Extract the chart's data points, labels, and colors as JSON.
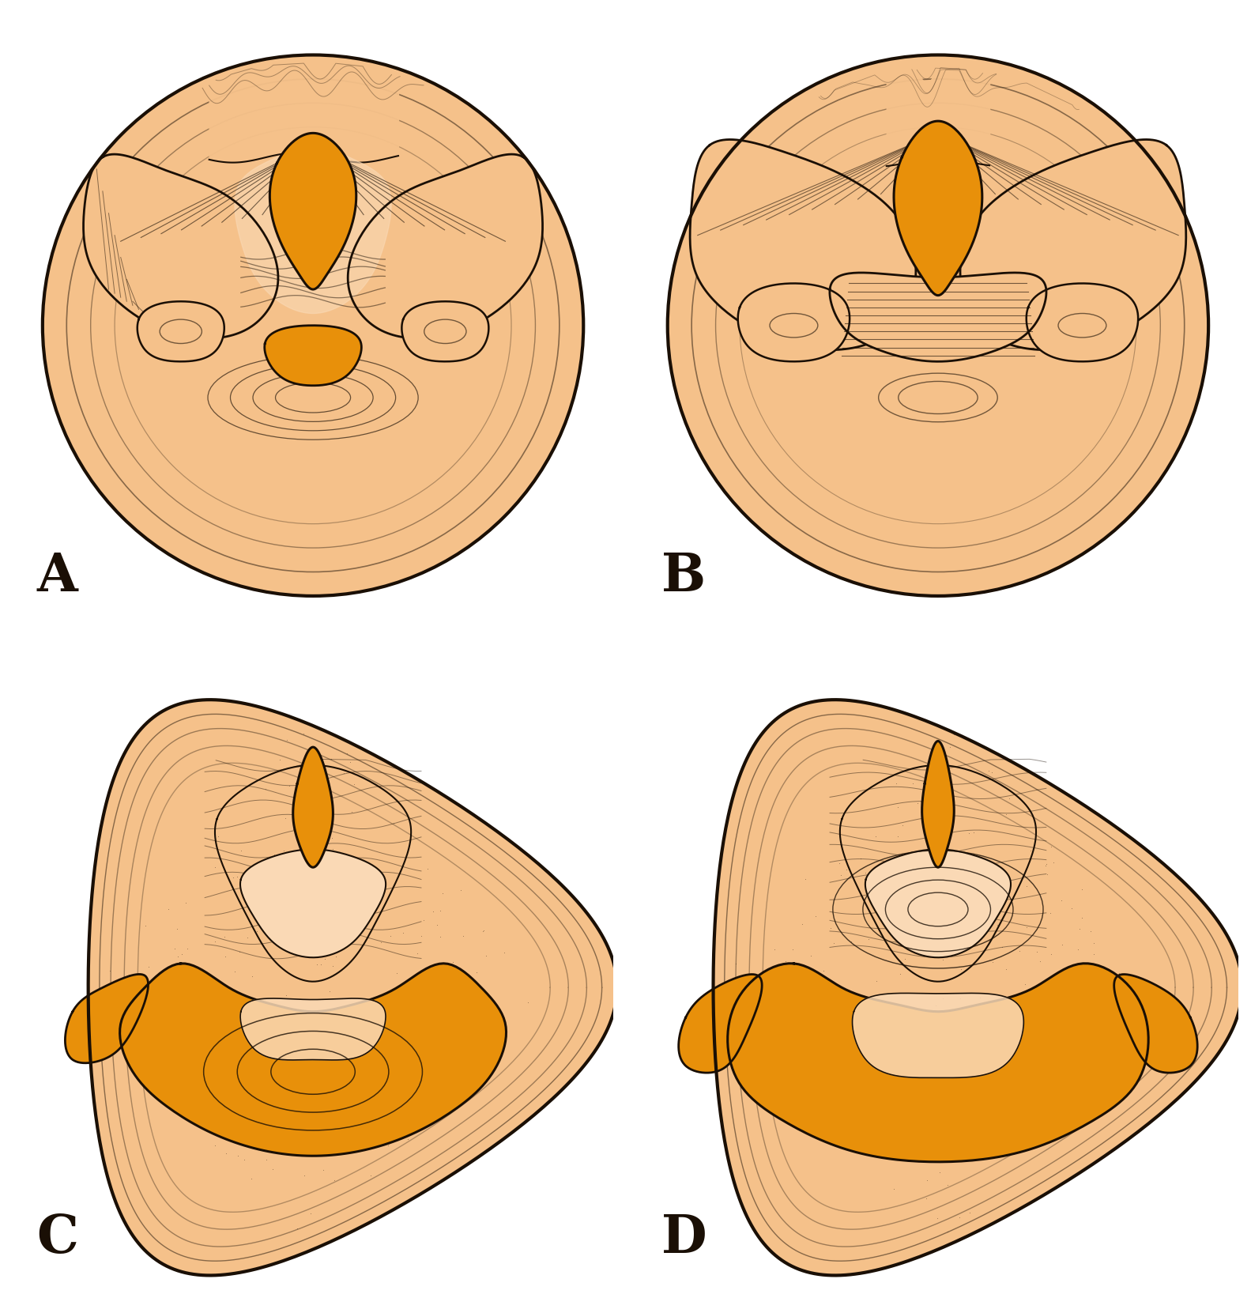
{
  "background_color": "#ffffff",
  "skin_color": "#f5c18a",
  "skin_light": "#fad9b5",
  "orange_color": "#e8900a",
  "orange_dark": "#c97800",
  "dark_line_color": "#1a0f05",
  "label_fontsize": 48,
  "labels": [
    "A",
    "B",
    "C",
    "D"
  ],
  "figsize": [
    15.83,
    16.61
  ]
}
